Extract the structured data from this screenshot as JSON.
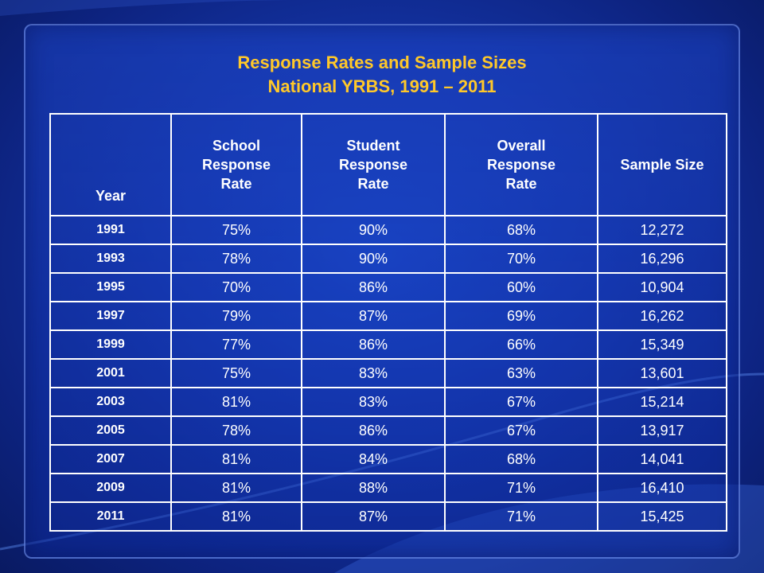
{
  "title": {
    "line1": "Response Rates and Sample Sizes",
    "line2": "National YRBS, 1991 – 2011"
  },
  "colors": {
    "title": "#ffc829",
    "text": "#ffffff",
    "grid": "#ffffff",
    "background": "#1435a8"
  },
  "chart_data": {
    "type": "table",
    "columns": [
      "Year",
      "School Response Rate",
      "Student Response Rate",
      "Overall Response Rate",
      "Sample Size"
    ],
    "rows": [
      [
        "1991",
        "75%",
        "90%",
        "68%",
        "12,272"
      ],
      [
        "1993",
        "78%",
        "90%",
        "70%",
        "16,296"
      ],
      [
        "1995",
        "70%",
        "86%",
        "60%",
        "10,904"
      ],
      [
        "1997",
        "79%",
        "87%",
        "69%",
        "16,262"
      ],
      [
        "1999",
        "77%",
        "86%",
        "66%",
        "15,349"
      ],
      [
        "2001",
        "75%",
        "83%",
        "63%",
        "13,601"
      ],
      [
        "2003",
        "81%",
        "83%",
        "67%",
        "15,214"
      ],
      [
        "2005",
        "78%",
        "86%",
        "67%",
        "13,917"
      ],
      [
        "2007",
        "81%",
        "84%",
        "68%",
        "14,041"
      ],
      [
        "2009",
        "81%",
        "88%",
        "71%",
        "16,410"
      ],
      [
        "2011",
        "81%",
        "87%",
        "71%",
        "15,425"
      ]
    ]
  }
}
